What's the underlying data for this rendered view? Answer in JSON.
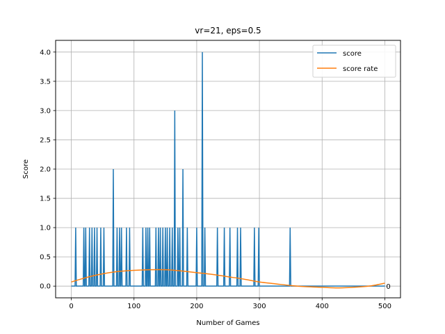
{
  "chart_data": {
    "type": "line",
    "title": "vr=21, eps=0.5",
    "xlabel": "Number of Games",
    "ylabel": "Score",
    "xlim": [
      -25,
      525
    ],
    "ylim": [
      -0.2,
      4.2
    ],
    "xticks": [
      0,
      100,
      200,
      300,
      400,
      500
    ],
    "xtick_labels": [
      "0",
      "100",
      "200",
      "300",
      "400",
      "500"
    ],
    "yticks": [
      0.0,
      0.5,
      1.0,
      1.5,
      2.0,
      2.5,
      3.0,
      3.5,
      4.0
    ],
    "ytick_labels": [
      "0.0",
      "0.5",
      "1.0",
      "1.5",
      "2.0",
      "2.5",
      "3.0",
      "3.5",
      "4.0"
    ],
    "grid": true,
    "legend": "top-right",
    "series": [
      {
        "name": "score",
        "color": "#1f77b4",
        "spikes": [
          [
            7,
            1
          ],
          [
            20,
            1
          ],
          [
            23,
            1
          ],
          [
            29,
            1
          ],
          [
            33,
            1
          ],
          [
            37,
            1
          ],
          [
            41,
            1
          ],
          [
            47,
            1
          ],
          [
            52,
            1
          ],
          [
            67,
            2
          ],
          [
            73,
            1
          ],
          [
            77,
            1
          ],
          [
            80,
            1
          ],
          [
            88,
            1
          ],
          [
            93,
            1
          ],
          [
            114,
            1
          ],
          [
            119,
            1
          ],
          [
            122,
            1
          ],
          [
            125,
            1
          ],
          [
            135,
            1
          ],
          [
            139,
            1
          ],
          [
            142,
            1
          ],
          [
            146,
            1
          ],
          [
            150,
            1
          ],
          [
            153,
            1
          ],
          [
            157,
            1
          ],
          [
            161,
            1
          ],
          [
            165,
            3
          ],
          [
            170,
            1
          ],
          [
            173,
            1
          ],
          [
            178,
            2
          ],
          [
            185,
            1
          ],
          [
            200,
            1
          ],
          [
            209,
            4
          ],
          [
            213,
            1
          ],
          [
            233,
            1
          ],
          [
            244,
            1
          ],
          [
            253,
            1
          ],
          [
            265,
            1
          ],
          [
            270,
            1
          ],
          [
            292,
            1
          ],
          [
            299,
            1
          ],
          [
            349,
            1
          ]
        ],
        "x_max": 500
      },
      {
        "name": "score rate",
        "color": "#ff7f0e",
        "points": [
          [
            0,
            0.07
          ],
          [
            25,
            0.15
          ],
          [
            50,
            0.21
          ],
          [
            75,
            0.25
          ],
          [
            100,
            0.27
          ],
          [
            125,
            0.28
          ],
          [
            150,
            0.28
          ],
          [
            175,
            0.26
          ],
          [
            200,
            0.23
          ],
          [
            225,
            0.2
          ],
          [
            250,
            0.16
          ],
          [
            275,
            0.12
          ],
          [
            300,
            0.07
          ],
          [
            325,
            0.04
          ],
          [
            350,
            0.01
          ],
          [
            375,
            -0.01
          ],
          [
            400,
            -0.02
          ],
          [
            425,
            -0.03
          ],
          [
            450,
            -0.02
          ],
          [
            475,
            0.0
          ],
          [
            500,
            0.05
          ]
        ]
      }
    ],
    "annotations": [
      {
        "text": "0",
        "x": 501,
        "y": 0.0
      }
    ]
  }
}
